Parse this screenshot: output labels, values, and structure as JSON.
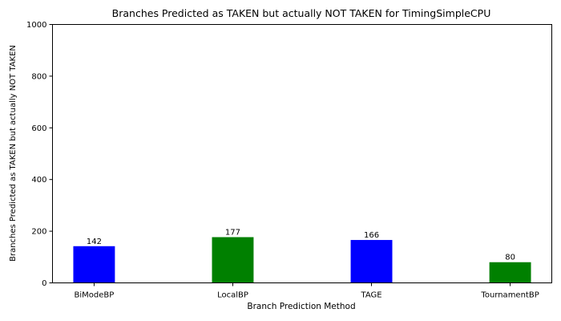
{
  "chart_data": {
    "type": "bar",
    "title": "Branches Predicted as TAKEN but actually NOT TAKEN for TimingSimpleCPU",
    "xlabel": "Branch Prediction Method",
    "ylabel": "Branches Predicted as TAKEN but actually NOT TAKEN",
    "categories": [
      "BiModeBP",
      "LocalBP",
      "TAGE",
      "TournamentBP"
    ],
    "values": [
      142,
      177,
      166,
      80
    ],
    "value_labels": [
      "142",
      "177",
      "166",
      "80"
    ],
    "bar_colors": [
      "#0000ff",
      "#008000",
      "#0000ff",
      "#008000"
    ],
    "ylim": [
      0,
      1000
    ],
    "yticks": [
      0,
      200,
      400,
      600,
      800,
      1000
    ],
    "ytick_labels": [
      "0",
      "200",
      "400",
      "600",
      "800",
      "1000"
    ],
    "grid": false,
    "legend": "none"
  }
}
